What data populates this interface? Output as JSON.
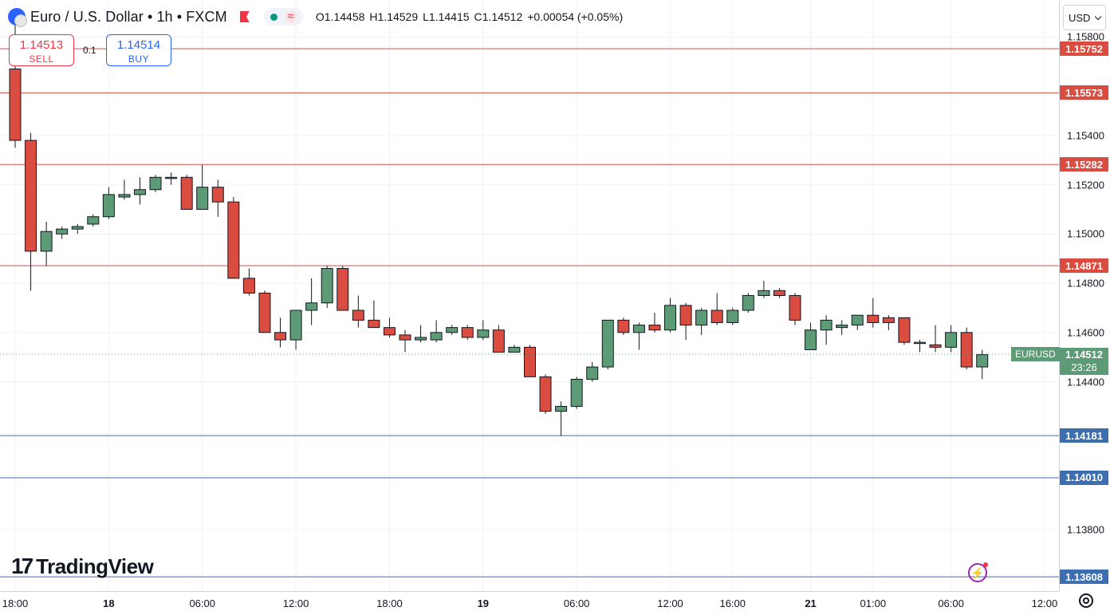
{
  "header": {
    "symbol_title": "Euro / U.S. Dollar • 1h • FXCM",
    "ohlc": {
      "open": "O1.14458",
      "high": "H1.14529",
      "low": "L1.14415",
      "close": "C1.14512",
      "change": "+0.00054 (+0.05%)"
    },
    "status_wave": "≈"
  },
  "trade": {
    "sell_price": "1.14513",
    "sell_label": "SELL",
    "buy_price": "1.14514",
    "buy_label": "BUY",
    "lot_size": "0.1"
  },
  "currency": "USD",
  "last_price": {
    "symbol": "EURUSD",
    "price": "1.14512",
    "countdown": "23:26"
  },
  "brand": "TradingView",
  "colors": {
    "up": "#5d9b76",
    "down": "#d94c3f",
    "wick": "#131722",
    "resistance": "#d94c3f",
    "support": "#3d6fb0",
    "grid": "#f0f3fa"
  },
  "chart_data": {
    "type": "candlestick",
    "symbol": "EURUSD",
    "timeframe": "1h",
    "y_range": [
      1.1355,
      1.1595
    ],
    "y_ticks": [
      1.138,
      1.144,
      1.146,
      1.148,
      1.15,
      1.152,
      1.154,
      1.158
    ],
    "y_tick_labels": [
      "1.13800",
      "1.14400",
      "1.14600",
      "1.14800",
      "1.15000",
      "1.15200",
      "1.15400",
      "1.15800"
    ],
    "x_labels": [
      {
        "label": "18:00",
        "i": 0,
        "bold": false
      },
      {
        "label": "18",
        "i": 6,
        "bold": true
      },
      {
        "label": "06:00",
        "i": 12,
        "bold": false
      },
      {
        "label": "12:00",
        "i": 18,
        "bold": false
      },
      {
        "label": "18:00",
        "i": 24,
        "bold": false
      },
      {
        "label": "19",
        "i": 30,
        "bold": true
      },
      {
        "label": "06:00",
        "i": 36,
        "bold": false
      },
      {
        "label": "12:00",
        "i": 42,
        "bold": false
      },
      {
        "label": "16:00",
        "i": 46,
        "bold": false
      },
      {
        "label": "21",
        "i": 51,
        "bold": true
      },
      {
        "label": "01:00",
        "i": 55,
        "bold": false
      },
      {
        "label": "06:00",
        "i": 60,
        "bold": false
      },
      {
        "label": "12:00",
        "i": 66,
        "bold": false
      }
    ],
    "candles": [
      {
        "o": 1.1567,
        "h": 1.1588,
        "l": 1.1535,
        "c": 1.1538
      },
      {
        "o": 1.1538,
        "h": 1.1541,
        "l": 1.1477,
        "c": 1.1493
      },
      {
        "o": 1.1493,
        "h": 1.1505,
        "l": 1.1487,
        "c": 1.1501
      },
      {
        "o": 1.15,
        "h": 1.1503,
        "l": 1.1498,
        "c": 1.1502
      },
      {
        "o": 1.1502,
        "h": 1.1504,
        "l": 1.15,
        "c": 1.1503
      },
      {
        "o": 1.1504,
        "h": 1.1508,
        "l": 1.1503,
        "c": 1.1507
      },
      {
        "o": 1.1507,
        "h": 1.1519,
        "l": 1.1506,
        "c": 1.1516
      },
      {
        "o": 1.1515,
        "h": 1.1522,
        "l": 1.1514,
        "c": 1.1516
      },
      {
        "o": 1.1516,
        "h": 1.1523,
        "l": 1.1512,
        "c": 1.1518
      },
      {
        "o": 1.1518,
        "h": 1.1524,
        "l": 1.1517,
        "c": 1.1523
      },
      {
        "o": 1.1523,
        "h": 1.1525,
        "l": 1.152,
        "c": 1.1523
      },
      {
        "o": 1.1523,
        "h": 1.1524,
        "l": 1.151,
        "c": 1.151
      },
      {
        "o": 1.151,
        "h": 1.1528,
        "l": 1.151,
        "c": 1.1519
      },
      {
        "o": 1.1519,
        "h": 1.1522,
        "l": 1.1507,
        "c": 1.1513
      },
      {
        "o": 1.1513,
        "h": 1.1515,
        "l": 1.1482,
        "c": 1.1482
      },
      {
        "o": 1.1482,
        "h": 1.1486,
        "l": 1.1475,
        "c": 1.1476
      },
      {
        "o": 1.1476,
        "h": 1.1477,
        "l": 1.146,
        "c": 1.146
      },
      {
        "o": 1.146,
        "h": 1.1466,
        "l": 1.1454,
        "c": 1.1457
      },
      {
        "o": 1.1457,
        "h": 1.1468,
        "l": 1.1453,
        "c": 1.1469
      },
      {
        "o": 1.1469,
        "h": 1.1482,
        "l": 1.1463,
        "c": 1.1472
      },
      {
        "o": 1.1472,
        "h": 1.1487,
        "l": 1.147,
        "c": 1.1486
      },
      {
        "o": 1.1486,
        "h": 1.1487,
        "l": 1.1469,
        "c": 1.1469
      },
      {
        "o": 1.1469,
        "h": 1.1475,
        "l": 1.1462,
        "c": 1.1465
      },
      {
        "o": 1.1465,
        "h": 1.1473,
        "l": 1.1462,
        "c": 1.1462
      },
      {
        "o": 1.1462,
        "h": 1.1466,
        "l": 1.1458,
        "c": 1.1459
      },
      {
        "o": 1.1459,
        "h": 1.1461,
        "l": 1.1452,
        "c": 1.1457
      },
      {
        "o": 1.1457,
        "h": 1.1463,
        "l": 1.1456,
        "c": 1.1458
      },
      {
        "o": 1.1457,
        "h": 1.1465,
        "l": 1.1456,
        "c": 1.146
      },
      {
        "o": 1.146,
        "h": 1.1463,
        "l": 1.1459,
        "c": 1.1462
      },
      {
        "o": 1.1462,
        "h": 1.1463,
        "l": 1.1457,
        "c": 1.1458
      },
      {
        "o": 1.1458,
        "h": 1.1465,
        "l": 1.1457,
        "c": 1.1461
      },
      {
        "o": 1.1461,
        "h": 1.1463,
        "l": 1.1452,
        "c": 1.1452
      },
      {
        "o": 1.1452,
        "h": 1.1455,
        "l": 1.1452,
        "c": 1.1454
      },
      {
        "o": 1.1454,
        "h": 1.1455,
        "l": 1.1442,
        "c": 1.1442
      },
      {
        "o": 1.1442,
        "h": 1.1443,
        "l": 1.1427,
        "c": 1.1428
      },
      {
        "o": 1.1428,
        "h": 1.1432,
        "l": 1.1418,
        "c": 1.143
      },
      {
        "o": 1.143,
        "h": 1.1442,
        "l": 1.1429,
        "c": 1.1441
      },
      {
        "o": 1.1441,
        "h": 1.1448,
        "l": 1.144,
        "c": 1.1446
      },
      {
        "o": 1.1446,
        "h": 1.1465,
        "l": 1.1445,
        "c": 1.1465
      },
      {
        "o": 1.1465,
        "h": 1.1466,
        "l": 1.1459,
        "c": 1.146
      },
      {
        "o": 1.146,
        "h": 1.1464,
        "l": 1.1453,
        "c": 1.1463
      },
      {
        "o": 1.1463,
        "h": 1.1468,
        "l": 1.146,
        "c": 1.1461
      },
      {
        "o": 1.1461,
        "h": 1.1474,
        "l": 1.146,
        "c": 1.1471
      },
      {
        "o": 1.1471,
        "h": 1.1472,
        "l": 1.1457,
        "c": 1.1463
      },
      {
        "o": 1.1463,
        "h": 1.147,
        "l": 1.1459,
        "c": 1.1469
      },
      {
        "o": 1.1469,
        "h": 1.1476,
        "l": 1.1463,
        "c": 1.1464
      },
      {
        "o": 1.1464,
        "h": 1.147,
        "l": 1.1463,
        "c": 1.1469
      },
      {
        "o": 1.1469,
        "h": 1.1476,
        "l": 1.1468,
        "c": 1.1475
      },
      {
        "o": 1.1475,
        "h": 1.1481,
        "l": 1.1474,
        "c": 1.1477
      },
      {
        "o": 1.1477,
        "h": 1.1478,
        "l": 1.1474,
        "c": 1.1475
      },
      {
        "o": 1.1475,
        "h": 1.1476,
        "l": 1.1463,
        "c": 1.1465
      },
      {
        "o": 1.1453,
        "h": 1.1464,
        "l": 1.1453,
        "c": 1.1461
      },
      {
        "o": 1.1461,
        "h": 1.1467,
        "l": 1.1455,
        "c": 1.1465
      },
      {
        "o": 1.1462,
        "h": 1.1465,
        "l": 1.1459,
        "c": 1.1463
      },
      {
        "o": 1.1463,
        "h": 1.1467,
        "l": 1.1461,
        "c": 1.1467
      },
      {
        "o": 1.1467,
        "h": 1.1474,
        "l": 1.1462,
        "c": 1.1464
      },
      {
        "o": 1.1466,
        "h": 1.1467,
        "l": 1.1461,
        "c": 1.1464
      },
      {
        "o": 1.1466,
        "h": 1.1466,
        "l": 1.1455,
        "c": 1.1456
      },
      {
        "o": 1.1456,
        "h": 1.1457,
        "l": 1.1452,
        "c": 1.1456
      },
      {
        "o": 1.1455,
        "h": 1.1463,
        "l": 1.1452,
        "c": 1.1454
      },
      {
        "o": 1.1454,
        "h": 1.1463,
        "l": 1.1452,
        "c": 1.146
      },
      {
        "o": 1.146,
        "h": 1.1462,
        "l": 1.1445,
        "c": 1.1446
      },
      {
        "o": 1.1446,
        "h": 1.1453,
        "l": 1.1441,
        "c": 1.1451
      }
    ],
    "horizontal_levels": [
      {
        "label": "1.15752",
        "value": 1.15752,
        "kind": "resistance"
      },
      {
        "label": "1.15573",
        "value": 1.15573,
        "kind": "resistance"
      },
      {
        "label": "1.15282",
        "value": 1.15282,
        "kind": "resistance"
      },
      {
        "label": "1.14871",
        "value": 1.14871,
        "kind": "resistance"
      },
      {
        "label": "1.14181",
        "value": 1.14181,
        "kind": "support"
      },
      {
        "label": "1.14010",
        "value": 1.1401,
        "kind": "support"
      },
      {
        "label": "1.13608",
        "value": 1.13608,
        "kind": "support"
      }
    ],
    "last_value": 1.14512
  }
}
